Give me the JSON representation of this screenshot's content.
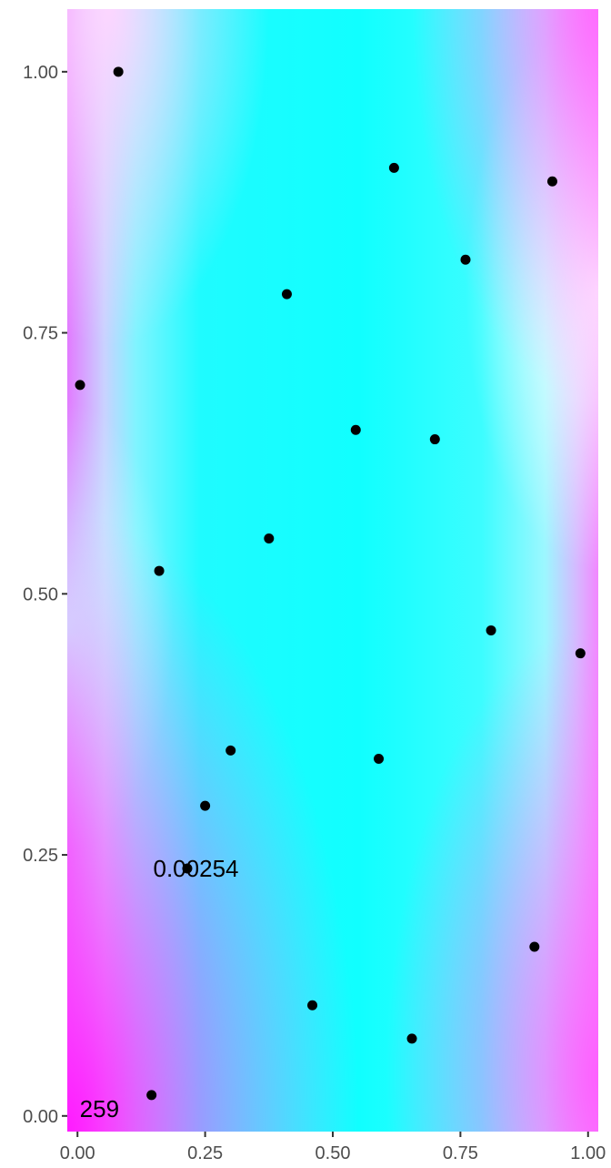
{
  "chart_data": {
    "type": "scatter",
    "title": "",
    "xlabel": "",
    "ylabel": "",
    "xlim": [
      -0.02,
      1.02
    ],
    "ylim": [
      -0.015,
      1.06
    ],
    "grid": false,
    "legend": "none",
    "background": "continuous color field (cyan center, magenta at left/right edges and bottom-left corner)",
    "colors": {
      "points": "#000000",
      "field_mid": "#00ffff",
      "field_edge": "#ff00ff",
      "tick": "#4d4d4d"
    },
    "x_ticks": [
      "0.00",
      "0.25",
      "0.50",
      "0.75",
      "1.00"
    ],
    "y_ticks": [
      "0.00",
      "0.25",
      "0.50",
      "0.75",
      "1.00"
    ],
    "x_tick_values": [
      0,
      0.25,
      0.5,
      0.75,
      1
    ],
    "y_tick_values": [
      0,
      0.25,
      0.5,
      0.75,
      1
    ],
    "points": [
      {
        "x": 0.08,
        "y": 1.0
      },
      {
        "x": 0.62,
        "y": 0.908
      },
      {
        "x": 0.93,
        "y": 0.895
      },
      {
        "x": 0.76,
        "y": 0.82
      },
      {
        "x": 0.41,
        "y": 0.787
      },
      {
        "x": 0.005,
        "y": 0.7
      },
      {
        "x": 0.545,
        "y": 0.657
      },
      {
        "x": 0.7,
        "y": 0.648
      },
      {
        "x": 0.375,
        "y": 0.553
      },
      {
        "x": 0.16,
        "y": 0.522
      },
      {
        "x": 0.81,
        "y": 0.465
      },
      {
        "x": 0.985,
        "y": 0.443
      },
      {
        "x": 0.3,
        "y": 0.35
      },
      {
        "x": 0.59,
        "y": 0.342
      },
      {
        "x": 0.25,
        "y": 0.297
      },
      {
        "x": 0.215,
        "y": 0.237
      },
      {
        "x": 0.895,
        "y": 0.162
      },
      {
        "x": 0.46,
        "y": 0.106
      },
      {
        "x": 0.655,
        "y": 0.074
      },
      {
        "x": 0.145,
        "y": 0.02
      }
    ],
    "annotations": [
      {
        "text": "0.00254",
        "x": 0.232,
        "y": 0.237
      },
      {
        "text": "259",
        "x": 0.043,
        "y": 0.007
      }
    ]
  }
}
